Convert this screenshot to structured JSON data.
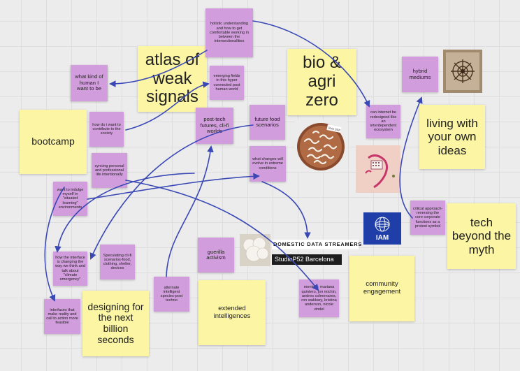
{
  "notes": {
    "holistic": "holistic understanding and how to get comfortable working in between the intersectionalities",
    "atlas": "atlas of weak signals",
    "bio_agri": "bio & agri zero",
    "what_kind": "what kind of human I want to be",
    "emerging": "emerging fields in this hyper connected post human world",
    "hybrid": "hybrid mediums",
    "living": "living with your own ideas",
    "bootcamp": "bootcamp",
    "how_do_i": "how do i want to contribute to the society",
    "post_tech": "post-tech futures, cli-fi worlds",
    "future_food": "future food scenarios",
    "internet": "can internet be redesigned like an interdependent ecosystem",
    "what_changes": "what changes will evolve in extreme conditions",
    "syncing": "syncing personal and professional life intentionally",
    "indulge": "want to indulge myself in \"situated learning\" environments",
    "critical": "critical approach-reversing the core corporate functions as a protest symbol",
    "tech_beyond": "tech beyond the myth",
    "how_interface": "how the interface is changing the way we think and talk about \"climate emergency\"",
    "speculating": "Speculating cli-fi scenarios-food, clothing, shelter, devices",
    "guerilla": "guerilla activism",
    "community": "community engagement",
    "interfaces": "interfaces that make reality and call to action more feasible",
    "designing": "designing for the next billion seconds",
    "alternate": "alternate intelligent species-post techno",
    "extended": "extended intelligences",
    "mentors": "mentors: mariana quintero, jon michin, andres colmenares, ron wakkary, kristina anderson, nicole vindel"
  },
  "logos": {
    "iam": "IAM",
    "dds": "DOMESTIC DATA STREAMERS",
    "studio": "StudioP52 Barcelona"
  },
  "images": {
    "pizza_tag": "Ruin SSP"
  },
  "colors": {
    "yellow_note": "#fbf5a4",
    "purple_note": "#d29ddc",
    "arrow": "#3a48b5",
    "iam_bg": "#1f3ea8"
  }
}
